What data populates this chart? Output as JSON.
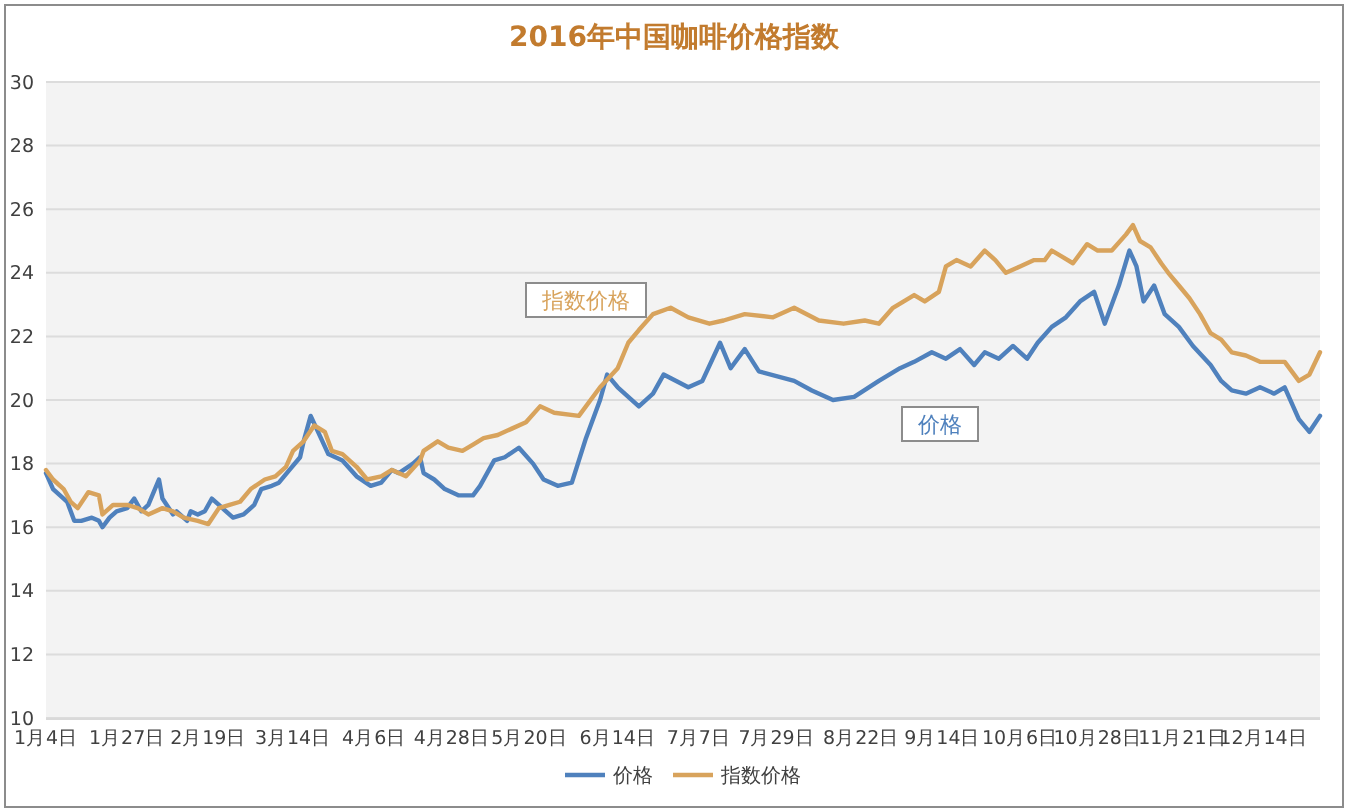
{
  "chart_data": {
    "type": "line",
    "title": "2016年中国咖啡价格指数",
    "xlim": [
      "--01-04",
      "--12-30"
    ],
    "xticks": [
      {
        "value": "--01-04",
        "label": "1月4日"
      },
      {
        "value": "--01-27",
        "label": "1月27日"
      },
      {
        "value": "--02-19",
        "label": "2月19日"
      },
      {
        "value": "--03-14",
        "label": "3月14日"
      },
      {
        "value": "--04-06",
        "label": "4月6日"
      },
      {
        "value": "--04-28",
        "label": "4月28日"
      },
      {
        "value": "--05-20",
        "label": "5月20日"
      },
      {
        "value": "--06-14",
        "label": "6月14日"
      },
      {
        "value": "--07-07",
        "label": "7月7日"
      },
      {
        "value": "--07-29",
        "label": "7月29日"
      },
      {
        "value": "--08-22",
        "label": "8月22日"
      },
      {
        "value": "--09-14",
        "label": "9月14日"
      },
      {
        "value": "--10-06",
        "label": "10月6日"
      },
      {
        "value": "--10-28",
        "label": "10月28日"
      },
      {
        "value": "--11-21",
        "label": "11月21日"
      },
      {
        "value": "--12-14",
        "label": "12月14日"
      }
    ],
    "ylim": [
      10,
      30
    ],
    "yticks": [
      10,
      12,
      14,
      16,
      18,
      20,
      22,
      24,
      26,
      28,
      30
    ],
    "grid": "y",
    "legend": "bottom",
    "line_style": "solid",
    "series": [
      {
        "name": "价格",
        "color": "#4f81bd",
        "x": [
          "--01-04",
          "--01-06",
          "--01-09",
          "--01-10",
          "--01-12",
          "--01-14",
          "--01-17",
          "--01-19",
          "--01-20",
          "--01-22",
          "--01-24",
          "--01-27",
          "--01-29",
          "--01-31",
          "--02-02",
          "--02-05",
          "--02-06",
          "--02-09",
          "--02-10",
          "--02-13",
          "--02-14",
          "--02-16",
          "--02-18",
          "--02-20",
          "--02-22",
          "--02-24",
          "--02-26",
          "--02-29",
          "--03-03",
          "--03-05",
          "--03-08",
          "--03-10",
          "--03-13",
          "--03-16",
          "--03-17",
          "--03-19",
          "--03-24",
          "--03-28",
          "--04-01",
          "--04-05",
          "--04-08",
          "--04-11",
          "--04-13",
          "--04-17",
          "--04-19",
          "--04-20",
          "--04-23",
          "--04-26",
          "--04-30",
          "--05-04",
          "--05-06",
          "--05-10",
          "--05-13",
          "--05-17",
          "--05-21",
          "--05-24",
          "--05-28",
          "--06-01",
          "--06-05",
          "--06-09",
          "--06-11",
          "--06-14",
          "--06-20",
          "--06-24",
          "--06-27",
          "--07-04",
          "--07-08",
          "--07-13",
          "--07-16",
          "--07-18",
          "--07-20",
          "--07-24",
          "--08-03",
          "--08-08",
          "--08-14",
          "--08-20",
          "--08-27",
          "--09-02",
          "--09-06",
          "--09-11",
          "--09-15",
          "--09-19",
          "--09-23",
          "--09-26",
          "--09-30",
          "--10-04",
          "--10-08",
          "--10-11",
          "--10-15",
          "--10-19",
          "--10-23",
          "--10-27",
          "--10-30",
          "--11-03",
          "--11-06",
          "--11-08",
          "--11-10",
          "--11-13",
          "--11-16",
          "--11-20",
          "--11-24",
          "--11-29",
          "--12-02",
          "--12-05",
          "--12-09",
          "--12-13",
          "--12-17",
          "--12-20",
          "--12-24",
          "--12-27",
          "--12-30"
        ],
        "values": [
          17.7,
          17.2,
          16.9,
          16.8,
          16.2,
          16.2,
          16.3,
          16.2,
          16.0,
          16.3,
          16.5,
          16.6,
          16.9,
          16.5,
          16.7,
          17.5,
          16.9,
          16.4,
          16.5,
          16.2,
          16.5,
          16.4,
          16.5,
          16.9,
          16.7,
          16.5,
          16.3,
          16.4,
          16.7,
          17.2,
          17.3,
          17.4,
          17.8,
          18.2,
          18.7,
          19.5,
          18.3,
          18.1,
          17.6,
          17.3,
          17.4,
          17.8,
          17.7,
          18.0,
          18.2,
          17.7,
          17.5,
          17.2,
          17.0,
          17.0,
          17.3,
          18.1,
          18.2,
          18.5,
          18.0,
          17.5,
          17.3,
          17.4,
          18.8,
          20.0,
          20.8,
          20.4,
          19.8,
          20.2,
          20.8,
          20.4,
          20.6,
          21.8,
          21.0,
          21.3,
          21.6,
          20.9,
          20.6,
          20.3,
          20.0,
          20.1,
          20.6,
          21.0,
          21.2,
          21.5,
          21.3,
          21.6,
          21.1,
          21.5,
          21.3,
          21.7,
          21.3,
          21.8,
          22.3,
          22.6,
          23.1,
          23.4,
          22.4,
          23.6,
          24.7,
          24.2,
          23.1,
          23.6,
          22.7,
          22.3,
          21.7,
          21.1,
          20.6,
          20.3,
          20.2,
          20.4,
          20.2,
          20.4,
          19.4,
          19.0,
          19.5
        ]
      },
      {
        "name": "指数价格",
        "color": "#d8a35c",
        "x": [
          "--01-04",
          "--01-06",
          "--01-09",
          "--01-11",
          "--01-13",
          "--01-16",
          "--01-19",
          "--01-20",
          "--01-23",
          "--01-27",
          "--01-30",
          "--02-02",
          "--02-06",
          "--02-09",
          "--02-12",
          "--02-16",
          "--02-19",
          "--02-22",
          "--02-25",
          "--02-28",
          "--03-02",
          "--03-06",
          "--03-09",
          "--03-12",
          "--03-14",
          "--03-17",
          "--03-20",
          "--03-23",
          "--03-25",
          "--03-28",
          "--04-01",
          "--04-04",
          "--04-08",
          "--04-11",
          "--04-15",
          "--04-19",
          "--04-20",
          "--04-24",
          "--04-27",
          "--05-01",
          "--05-04",
          "--05-07",
          "--05-11",
          "--05-15",
          "--05-19",
          "--05-23",
          "--05-27",
          "--06-03",
          "--06-09",
          "--06-14",
          "--06-17",
          "--06-20",
          "--06-24",
          "--06-29",
          "--07-04",
          "--07-10",
          "--07-14",
          "--07-20",
          "--07-28",
          "--08-03",
          "--08-10",
          "--08-17",
          "--08-23",
          "--08-27",
          "--08-31",
          "--09-06",
          "--09-09",
          "--09-13",
          "--09-15",
          "--09-18",
          "--09-22",
          "--09-26",
          "--09-29",
          "--10-02",
          "--10-06",
          "--10-10",
          "--10-13",
          "--10-15",
          "--10-18",
          "--10-21",
          "--10-25",
          "--10-28",
          "--11-01",
          "--11-05",
          "--11-07",
          "--11-09",
          "--11-12",
          "--11-15",
          "--11-17",
          "--11-20",
          "--11-23",
          "--11-26",
          "--11-29",
          "--12-02",
          "--12-05",
          "--12-09",
          "--12-13",
          "--12-17",
          "--12-20",
          "--12-24",
          "--12-27",
          "--12-30"
        ],
        "values": [
          17.8,
          17.5,
          17.2,
          16.8,
          16.6,
          17.1,
          17.0,
          16.4,
          16.7,
          16.7,
          16.6,
          16.4,
          16.6,
          16.5,
          16.3,
          16.2,
          16.1,
          16.6,
          16.7,
          16.8,
          17.2,
          17.5,
          17.6,
          17.9,
          18.4,
          18.7,
          19.2,
          19.0,
          18.4,
          18.3,
          17.9,
          17.5,
          17.6,
          17.8,
          17.6,
          18.1,
          18.4,
          18.7,
          18.5,
          18.4,
          18.6,
          18.8,
          18.9,
          19.1,
          19.3,
          19.8,
          19.6,
          19.5,
          20.4,
          21.0,
          21.8,
          22.2,
          22.7,
          22.9,
          22.6,
          22.4,
          22.5,
          22.7,
          22.6,
          22.9,
          22.5,
          22.4,
          22.5,
          22.4,
          22.9,
          23.3,
          23.1,
          23.4,
          24.2,
          24.4,
          24.2,
          24.7,
          24.4,
          24.0,
          24.2,
          24.4,
          24.4,
          24.7,
          24.5,
          24.3,
          24.9,
          24.7,
          24.7,
          25.2,
          25.5,
          25.0,
          24.8,
          24.3,
          24.0,
          23.6,
          23.2,
          22.7,
          22.1,
          21.9,
          21.5,
          21.4,
          21.2,
          21.2,
          21.2,
          20.6,
          20.8,
          21.5
        ]
      }
    ]
  }
}
